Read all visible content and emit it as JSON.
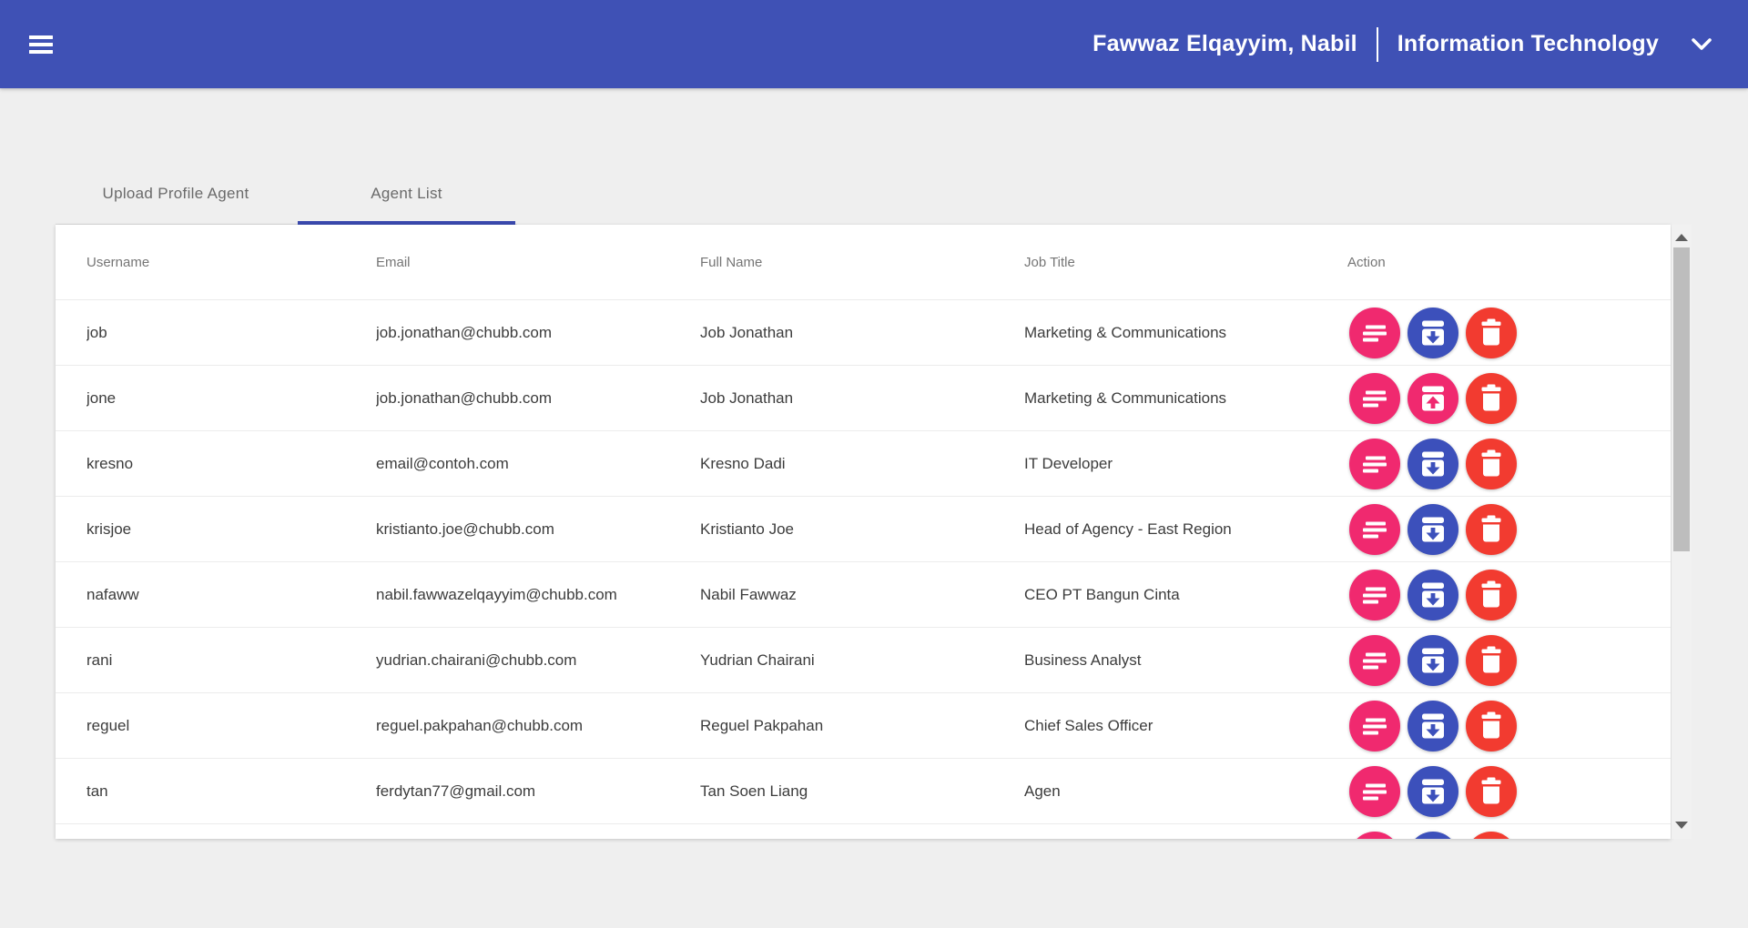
{
  "appbar": {
    "user_name": "Fawwaz Elqayyim, Nabil",
    "department": "Information Technology",
    "bg_color": "#3f51b5"
  },
  "tabs": [
    {
      "label": "Upload Profile Agent",
      "active": false
    },
    {
      "label": "Agent List",
      "active": true
    }
  ],
  "tab_underline_color": "#3a49ae",
  "table": {
    "columns": [
      "Username",
      "Email",
      "Full Name",
      "Job Title",
      "Action"
    ],
    "rows": [
      {
        "username": "job",
        "email": "job.jonathan@chubb.com",
        "full_name": "Job Jonathan",
        "job_title": "Marketing & Communications",
        "partial": false,
        "actions": [
          {
            "icon": "detail-lines-icon",
            "color": "pink"
          },
          {
            "icon": "archive-down-icon",
            "color": "blue"
          },
          {
            "icon": "trash-icon",
            "color": "red"
          }
        ]
      },
      {
        "username": "jone",
        "email": "job.jonathan@chubb.com",
        "full_name": "Job Jonathan",
        "job_title": "Marketing & Communications",
        "partial": false,
        "actions": [
          {
            "icon": "detail-lines-icon",
            "color": "pink"
          },
          {
            "icon": "archive-up-icon",
            "color": "pink"
          },
          {
            "icon": "trash-icon",
            "color": "red"
          }
        ]
      },
      {
        "username": "kresno",
        "email": "email@contoh.com",
        "full_name": "Kresno Dadi",
        "job_title": "IT Developer",
        "partial": false,
        "actions": [
          {
            "icon": "detail-lines-icon",
            "color": "pink"
          },
          {
            "icon": "archive-down-icon",
            "color": "blue"
          },
          {
            "icon": "trash-icon",
            "color": "red"
          }
        ]
      },
      {
        "username": "krisjoe",
        "email": "kristianto.joe@chubb.com",
        "full_name": "Kristianto Joe",
        "job_title": "Head of Agency - East Region",
        "partial": false,
        "actions": [
          {
            "icon": "detail-lines-icon",
            "color": "pink"
          },
          {
            "icon": "archive-down-icon",
            "color": "blue"
          },
          {
            "icon": "trash-icon",
            "color": "red"
          }
        ]
      },
      {
        "username": "nafaww",
        "email": "nabil.fawwazelqayyim@chubb.com",
        "full_name": "Nabil Fawwaz",
        "job_title": "CEO PT Bangun Cinta",
        "partial": false,
        "actions": [
          {
            "icon": "detail-lines-icon",
            "color": "pink"
          },
          {
            "icon": "archive-down-icon",
            "color": "blue"
          },
          {
            "icon": "trash-icon",
            "color": "red"
          }
        ]
      },
      {
        "username": "rani",
        "email": "yudrian.chairani@chubb.com",
        "full_name": "Yudrian Chairani",
        "job_title": "Business Analyst",
        "partial": false,
        "actions": [
          {
            "icon": "detail-lines-icon",
            "color": "pink"
          },
          {
            "icon": "archive-down-icon",
            "color": "blue"
          },
          {
            "icon": "trash-icon",
            "color": "red"
          }
        ]
      },
      {
        "username": "reguel",
        "email": "reguel.pakpahan@chubb.com",
        "full_name": "Reguel Pakpahan",
        "job_title": "Chief Sales Officer",
        "partial": false,
        "actions": [
          {
            "icon": "detail-lines-icon",
            "color": "pink"
          },
          {
            "icon": "archive-down-icon",
            "color": "blue"
          },
          {
            "icon": "trash-icon",
            "color": "red"
          }
        ]
      },
      {
        "username": "tan",
        "email": "ferdytan77@gmail.com",
        "full_name": "Tan Soen Liang",
        "job_title": "Agen",
        "partial": false,
        "actions": [
          {
            "icon": "detail-lines-icon",
            "color": "pink"
          },
          {
            "icon": "archive-down-icon",
            "color": "blue"
          },
          {
            "icon": "trash-icon",
            "color": "red"
          }
        ]
      },
      {
        "username": "",
        "email": "",
        "full_name": "",
        "job_title": "",
        "partial": true,
        "actions": [
          {
            "icon": "detail-lines-icon",
            "color": "pink"
          },
          {
            "icon": "archive-down-icon",
            "color": "blue"
          },
          {
            "icon": "trash-icon",
            "color": "red"
          }
        ]
      }
    ]
  },
  "action_colors": {
    "pink": "#f0296f",
    "blue": "#3c50bb",
    "red": "#f23b30"
  }
}
